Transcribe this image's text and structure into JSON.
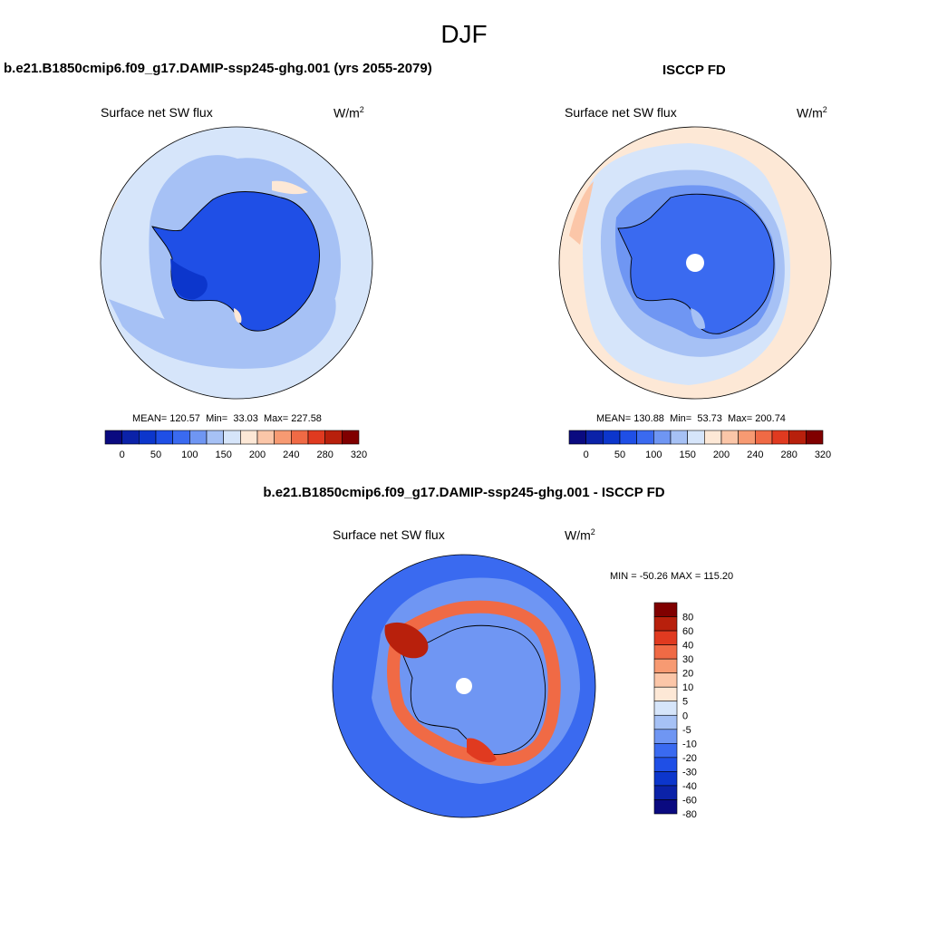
{
  "figure": {
    "season": "DJF",
    "panels": [
      {
        "title": "b.e21.B1850cmip6.f09_g17.DAMIP-ssp245-ghg.001 (yrs 2055-2079)",
        "variable": "Surface net SW flux",
        "units": "W/m",
        "units_exp": "2",
        "stats": {
          "mean_label": "MEAN=",
          "mean": "120.57",
          "min_label": "Min=",
          "min": "33.03",
          "max_label": "Max=",
          "max": "227.58"
        }
      },
      {
        "title": "ISCCP FD",
        "variable": "Surface net SW flux",
        "units": "W/m",
        "units_exp": "2",
        "stats": {
          "mean_label": "MEAN=",
          "mean": "130.88",
          "min_label": "Min=",
          "min": "53.73",
          "max_label": "Max=",
          "max": "200.74"
        }
      },
      {
        "title": "b.e21.B1850cmip6.f09_g17.DAMIP-ssp245-ghg.001 - ISCCP FD",
        "variable": "Surface net SW flux",
        "units": "W/m",
        "units_exp": "2",
        "stats_text": "MIN = -50.26 MAX = 115.20"
      }
    ]
  },
  "chart_data": [
    {
      "type": "heatmap",
      "projection": "south-polar-stereographic",
      "title": "b.e21.B1850cmip6.f09_g17.DAMIP-ssp245-ghg.001 (yrs 2055-2079)",
      "variable": "Surface net SW flux",
      "units": "W/m2",
      "colorbar": {
        "orientation": "horizontal",
        "levels": [
          0,
          25,
          50,
          75,
          100,
          125,
          150,
          175,
          200,
          220,
          240,
          260,
          280,
          300,
          320
        ],
        "tick_labels": [
          "0",
          "50",
          "100",
          "150",
          "200",
          "240",
          "280",
          "320"
        ],
        "colors": [
          "#0a0a80",
          "#0b22a8",
          "#0c36cc",
          "#1f4fe6",
          "#3a6af0",
          "#6f96f3",
          "#a6c1f5",
          "#d6e5fa",
          "#fde8d6",
          "#fbc6a8",
          "#f79a72",
          "#f06a45",
          "#e03a20",
          "#b8200c",
          "#800000"
        ]
      },
      "regions": [
        {
          "name": "antarctic-continent",
          "approx_value": 75
        },
        {
          "name": "southern-ocean-inner",
          "approx_value": 110
        },
        {
          "name": "southern-ocean-outer",
          "approx_value": 140
        },
        {
          "name": "west-antarctic-peninsula",
          "approx_value": 60
        }
      ]
    },
    {
      "type": "heatmap",
      "projection": "south-polar-stereographic",
      "title": "ISCCP FD",
      "variable": "Surface net SW flux",
      "units": "W/m2",
      "colorbar": {
        "orientation": "horizontal",
        "levels": [
          0,
          25,
          50,
          75,
          100,
          125,
          150,
          175,
          200,
          220,
          240,
          260,
          280,
          300,
          320
        ],
        "tick_labels": [
          "0",
          "50",
          "100",
          "150",
          "200",
          "240",
          "280",
          "320"
        ],
        "colors": [
          "#0a0a80",
          "#0b22a8",
          "#0c36cc",
          "#1f4fe6",
          "#3a6af0",
          "#6f96f3",
          "#a6c1f5",
          "#d6e5fa",
          "#fde8d6",
          "#fbc6a8",
          "#f79a72",
          "#f06a45",
          "#e03a20",
          "#b8200c",
          "#800000"
        ]
      },
      "regions": [
        {
          "name": "antarctic-continent",
          "approx_value": 85
        },
        {
          "name": "coastal-ring",
          "approx_value": 115
        },
        {
          "name": "southern-ocean",
          "approx_value": 160
        },
        {
          "name": "mid-latitude-ring",
          "approx_value": 185
        },
        {
          "name": "pole-missing",
          "approx_value": null
        }
      ]
    },
    {
      "type": "heatmap",
      "projection": "south-polar-stereographic",
      "title": "b.e21.B1850cmip6.f09_g17.DAMIP-ssp245-ghg.001 - ISCCP FD",
      "variable": "Surface net SW flux",
      "units": "W/m2",
      "min": -50.26,
      "max": 115.2,
      "colorbar": {
        "orientation": "vertical",
        "tick_labels": [
          "80",
          "60",
          "40",
          "30",
          "20",
          "10",
          "5",
          "0",
          "-5",
          "-10",
          "-20",
          "-30",
          "-40",
          "-60",
          "-80"
        ],
        "colors": [
          "#800000",
          "#b8200c",
          "#e03a20",
          "#f06a45",
          "#f79a72",
          "#fbc6a8",
          "#fde8d6",
          "#d6e5fa",
          "#a6c1f5",
          "#6f96f3",
          "#3a6af0",
          "#1f4fe6",
          "#0c36cc",
          "#0b22a8",
          "#0a0a80"
        ]
      },
      "regions": [
        {
          "name": "southern-ocean",
          "approx_value": -25
        },
        {
          "name": "antarctic-interior",
          "approx_value": -15
        },
        {
          "name": "coastal-sea-ice-ring",
          "approx_value": 40
        },
        {
          "name": "weddell-sea",
          "approx_value": 60
        },
        {
          "name": "pole-missing",
          "approx_value": null
        }
      ]
    }
  ]
}
